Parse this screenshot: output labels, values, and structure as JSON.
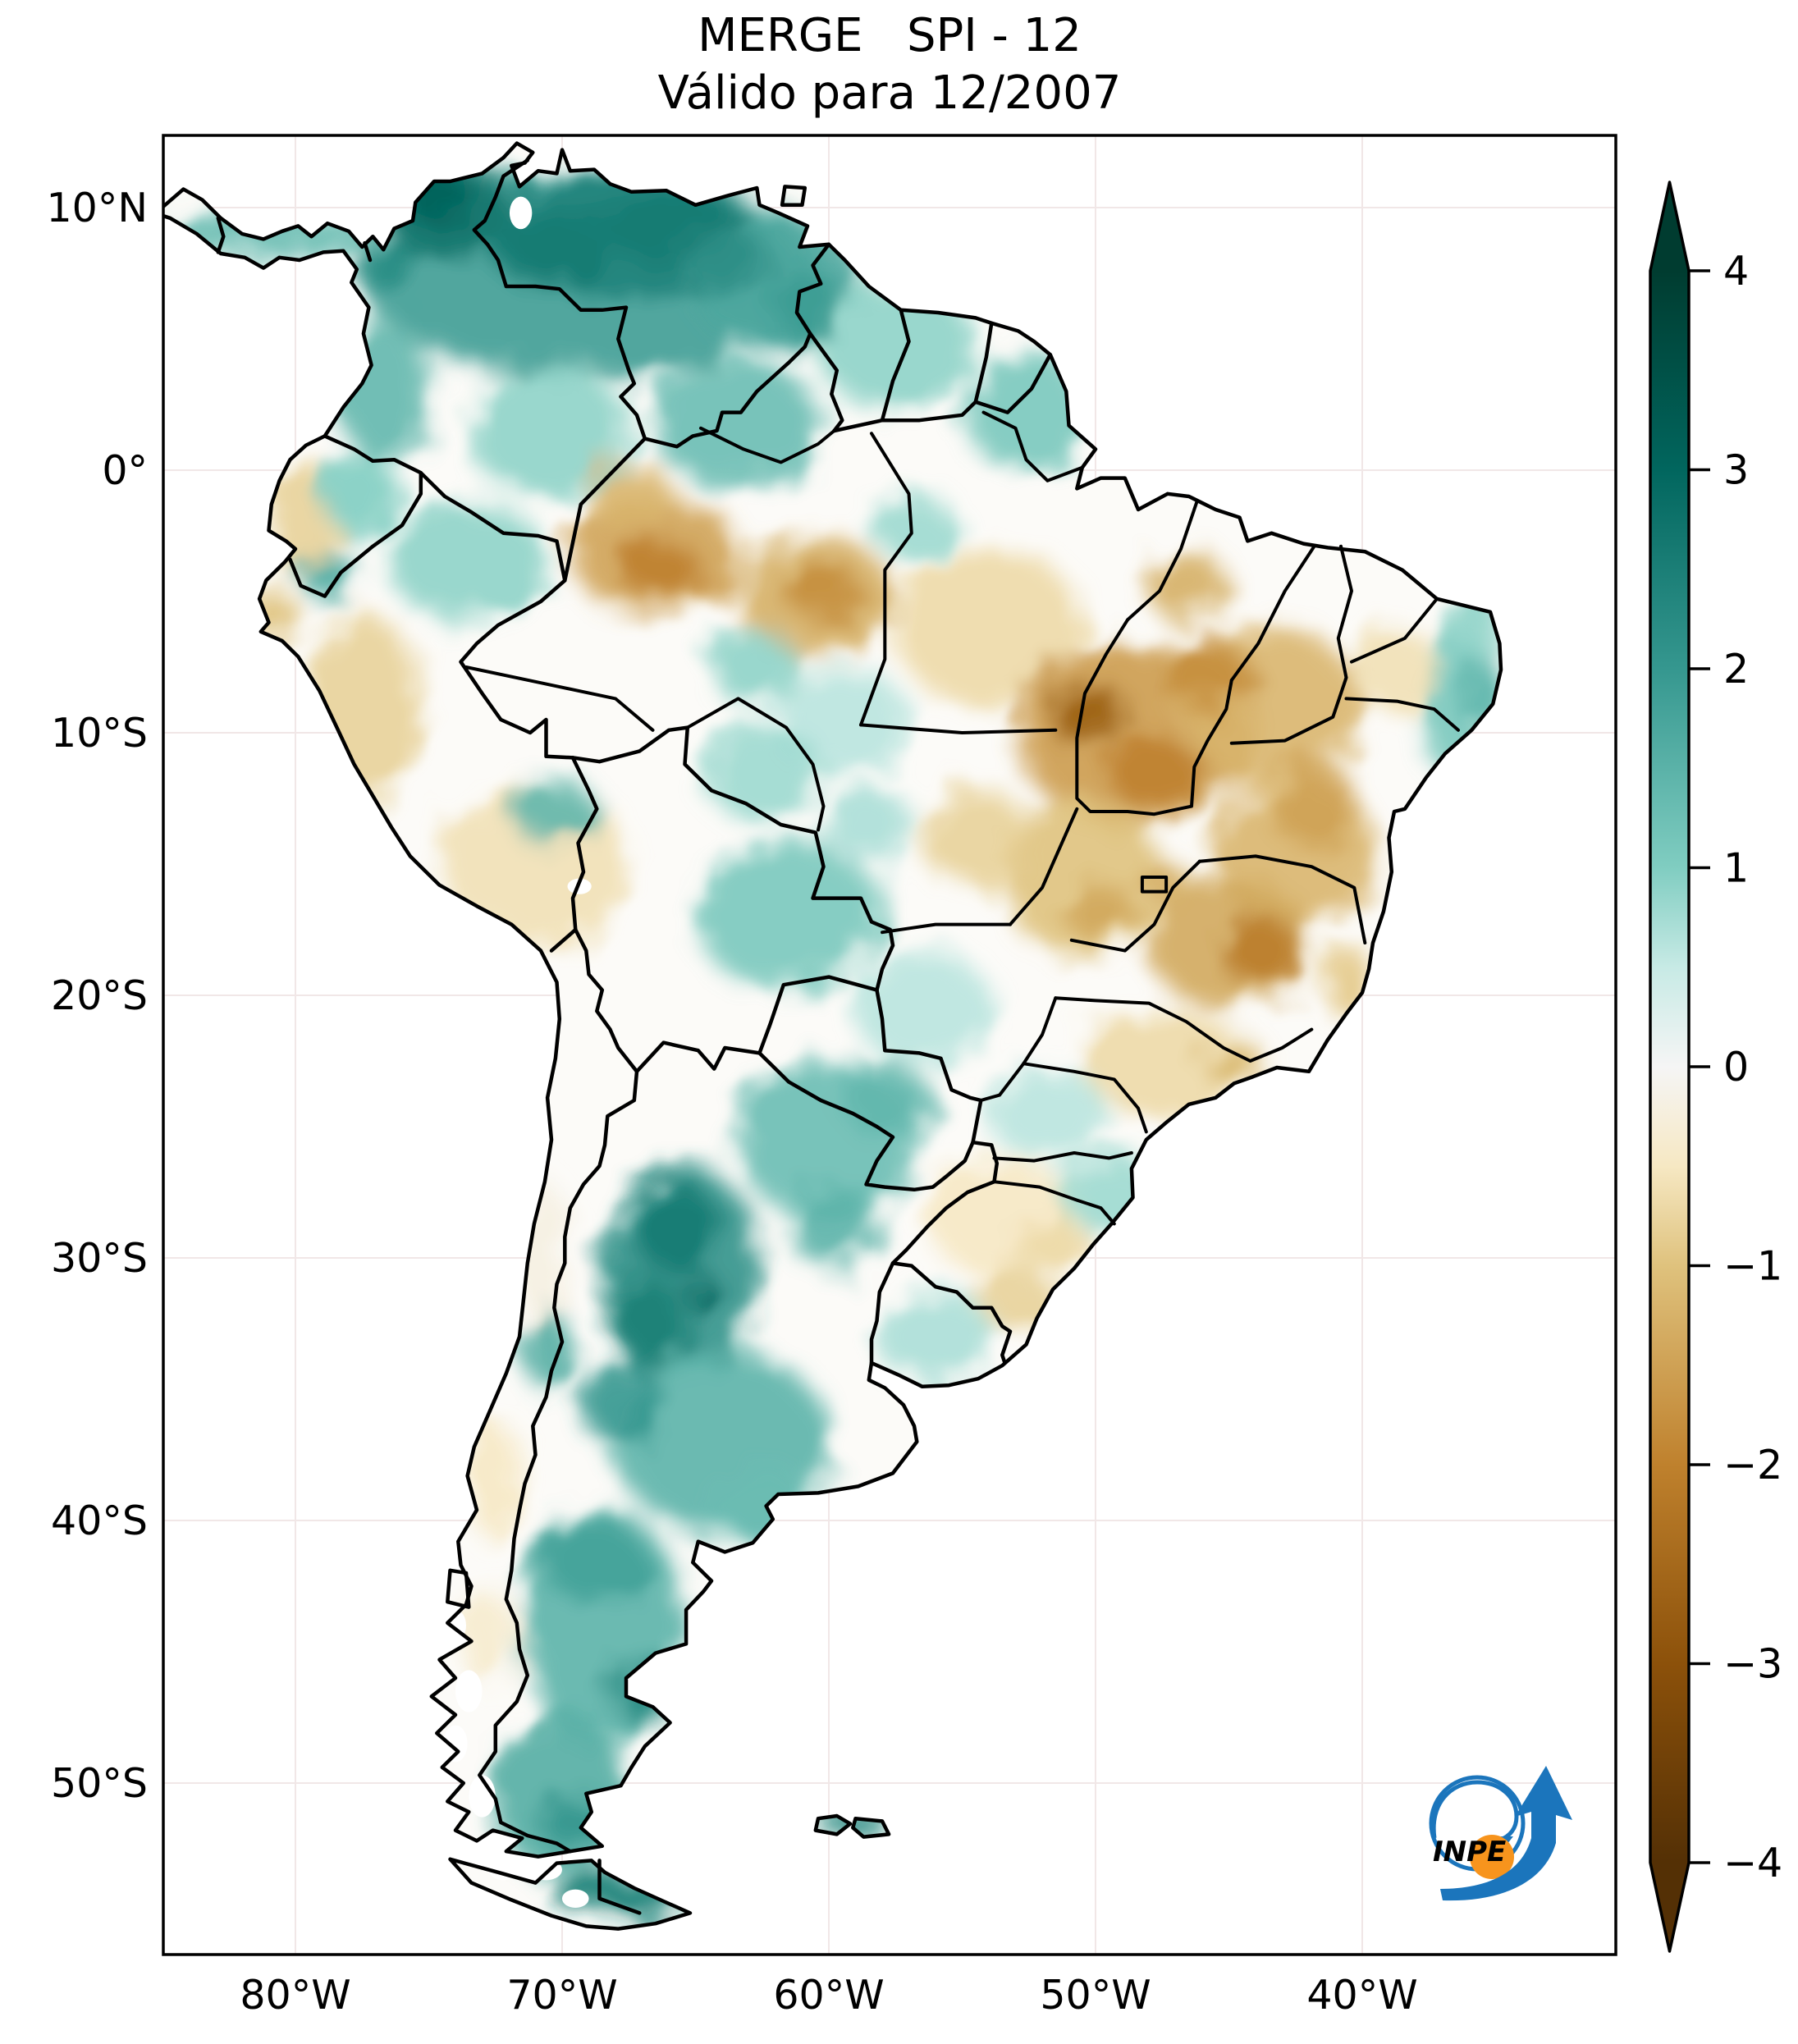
{
  "title": {
    "line1": "MERGE   SPI - 12",
    "line2": "Válido para 12/2007"
  },
  "axes": {
    "lat_ticks": [
      {
        "label": "10°N",
        "lat": 10
      },
      {
        "label": "0°",
        "lat": 0
      },
      {
        "label": "10°S",
        "lat": -10
      },
      {
        "label": "20°S",
        "lat": -20
      },
      {
        "label": "30°S",
        "lat": -30
      },
      {
        "label": "40°S",
        "lat": -40
      },
      {
        "label": "50°S",
        "lat": -50
      }
    ],
    "lon_ticks": [
      {
        "label": "80°W",
        "lon": -80
      },
      {
        "label": "70°W",
        "lon": -70
      },
      {
        "label": "60°W",
        "lon": -60
      },
      {
        "label": "50°W",
        "lon": -50
      },
      {
        "label": "40°W",
        "lon": -40
      }
    ]
  },
  "colorbar": {
    "vmin": -4,
    "vmax": 4,
    "colormap": "BrBG",
    "ticks": [
      {
        "label": "4",
        "value": 4
      },
      {
        "label": "3",
        "value": 3
      },
      {
        "label": "2",
        "value": 2
      },
      {
        "label": "1",
        "value": 1
      },
      {
        "label": "0",
        "value": 0
      },
      {
        "label": "−1",
        "value": -1
      },
      {
        "label": "−2",
        "value": -2
      },
      {
        "label": "−3",
        "value": -3
      },
      {
        "label": "−4",
        "value": -4
      }
    ]
  },
  "logo": {
    "text": "INPE",
    "blue": "#1b75bc",
    "orange": "#f7941d",
    "text_color": "#231f20"
  },
  "colors": {
    "land_base": "#fcfbf8",
    "ocean": "#ffffff",
    "border": "#000000",
    "graticule": "#f1e7e7",
    "frame": "#000000"
  },
  "chart_data": {
    "type": "heatmap",
    "product": "MERGE",
    "variable": "SPI - 12",
    "valid_for": "12/2007",
    "title": "MERGE   SPI - 12",
    "subtitle": "Válido para 12/2007",
    "colormap": "BrBG",
    "vmin": -4,
    "vmax": 4,
    "lon_range": [
      -85,
      -30.5
    ],
    "lat_range": [
      -56.5,
      12.75
    ],
    "colorbar_ticks": [
      4,
      3,
      2,
      1,
      0,
      -1,
      -2,
      -3,
      -4
    ],
    "regions_format": [
      "lon",
      "lat",
      "rx_deg",
      "ry_deg",
      "spi"
    ],
    "regions": [
      [
        -69,
        7.5,
        8.5,
        4,
        1.9
      ],
      [
        -74.5,
        10,
        2.6,
        2,
        2.7
      ],
      [
        -67.5,
        9.2,
        4.5,
        2.6,
        2.4
      ],
      [
        -62,
        7.2,
        3.2,
        2.6,
        1.7
      ],
      [
        -57.5,
        4.8,
        3,
        2.4,
        0.9
      ],
      [
        -52.5,
        2.2,
        2.4,
        2.2,
        1.1
      ],
      [
        -63.5,
        1.8,
        3.2,
        2.4,
        1.3
      ],
      [
        -70.5,
        1.5,
        3,
        2.5,
        0.9
      ],
      [
        -76.8,
        3,
        1.8,
        2.6,
        1.4
      ],
      [
        -66.5,
        -3.2,
        3.2,
        2.2,
        -1.5
      ],
      [
        -60.5,
        -4.8,
        3,
        2.2,
        -1.3
      ],
      [
        -54,
        -6,
        3.5,
        3,
        -0.7
      ],
      [
        -48.5,
        -10,
        4.5,
        3.5,
        -1.6
      ],
      [
        -43.5,
        -9,
        3.5,
        3,
        -1.2
      ],
      [
        -42.5,
        -14.5,
        3,
        2.8,
        -1.2
      ],
      [
        -45,
        -18,
        3,
        2.5,
        -1.4
      ],
      [
        -50.5,
        -15.5,
        3,
        3,
        -1
      ],
      [
        -47.5,
        -22.5,
        3,
        2,
        -0.7
      ],
      [
        -61.5,
        -17,
        3.5,
        2.8,
        1.1
      ],
      [
        -60,
        -25.5,
        3.5,
        3,
        1.3
      ],
      [
        -65.5,
        -30.5,
        3,
        4,
        2.1
      ],
      [
        -64,
        -37,
        4,
        3.5,
        1.5
      ],
      [
        -68.5,
        -44,
        3,
        4.5,
        1.5
      ],
      [
        -70,
        -50.5,
        2.6,
        3,
        1.6
      ],
      [
        -71,
        -15,
        3.5,
        3,
        -0.6
      ],
      [
        -77.5,
        -9,
        2.2,
        3.5,
        -0.8
      ],
      [
        -73.5,
        -3.5,
        3,
        2.2,
        0.9
      ],
      [
        -79.8,
        -1.8,
        1.3,
        2.2,
        -0.8
      ],
      [
        -56.5,
        -20.5,
        2.6,
        2.2,
        0.6
      ],
      [
        -53.5,
        -28.5,
        2.8,
        2.2,
        -0.5
      ],
      [
        -56,
        -33,
        2.2,
        1.8,
        0.7
      ],
      [
        -81,
        8.9,
        4.5,
        0.9,
        1.3
      ],
      [
        -72.5,
        -38.5,
        1,
        2.2,
        -0.5
      ],
      [
        -70.8,
        -30,
        1,
        3,
        -0.2
      ],
      [
        -59.5,
        -9.5,
        2.5,
        2,
        0.6
      ],
      [
        -62.5,
        -11.5,
        2.2,
        1.8,
        0.8
      ],
      [
        -36.5,
        -9,
        1.4,
        2.6,
        1.1
      ],
      [
        -35.8,
        -6,
        1,
        1.6,
        0.9
      ],
      [
        -49.5,
        -27.5,
        1.8,
        1.5,
        0.8
      ],
      [
        -51.8,
        -24.5,
        2.2,
        1.8,
        0.6
      ],
      [
        -77.5,
        -1,
        1.5,
        1.5,
        1
      ],
      [
        -74.8,
        10.5,
        1.4,
        1,
        3.1
      ],
      [
        -70.5,
        8.5,
        2.2,
        1.4,
        2.6
      ],
      [
        -66,
        9.3,
        2.6,
        1.4,
        2.6
      ],
      [
        -63.8,
        8,
        1.6,
        1.2,
        2.2
      ],
      [
        -60.8,
        6.3,
        1.4,
        1.4,
        1.9
      ],
      [
        -50.3,
        -9.3,
        1.5,
        1.1,
        -2.7
      ],
      [
        -47.8,
        -11.5,
        1.8,
        1.4,
        -2
      ],
      [
        -45.8,
        -7.8,
        1.6,
        1.3,
        -1.8
      ],
      [
        -43.8,
        -18.3,
        1.5,
        1.3,
        -2.1
      ],
      [
        -41.8,
        -12.8,
        1.6,
        1.6,
        -1.5
      ],
      [
        -66.3,
        -3.8,
        1.5,
        1.1,
        -2
      ],
      [
        -60.2,
        -4.6,
        1.4,
        1.1,
        -1.8
      ],
      [
        -65.8,
        -28.8,
        1.6,
        1.8,
        2.6
      ],
      [
        -66.8,
        -32.5,
        1.4,
        1.8,
        2.5
      ],
      [
        -64.8,
        -31.3,
        0.7,
        0.6,
        3
      ],
      [
        -67.8,
        -35.5,
        1.5,
        1.6,
        2
      ],
      [
        -66.8,
        -46.5,
        1.4,
        1.2,
        2.2
      ],
      [
        -68.8,
        -41.5,
        2,
        1.6,
        1.8
      ],
      [
        -68,
        -54.2,
        2.4,
        0.9,
        2.5
      ],
      [
        -59,
        -51.6,
        1.3,
        0.6,
        2.2
      ],
      [
        -76.6,
        7.8,
        1,
        1.3,
        2.2
      ],
      [
        -70.3,
        -13,
        1.6,
        1.2,
        1.4
      ],
      [
        -49.9,
        -16.8,
        1.3,
        1.1,
        -1.4
      ],
      [
        -44.8,
        -22.6,
        1.2,
        0.8,
        -1.1
      ],
      [
        -56.8,
        -2.2,
        1.6,
        1.2,
        0.8
      ],
      [
        -67.5,
        -1,
        1.6,
        1.3,
        -1.2
      ],
      [
        -78.8,
        -4,
        1,
        1,
        1.6
      ],
      [
        -80.8,
        -5.5,
        0.9,
        0.9,
        -1
      ],
      [
        -62.8,
        -7.5,
        1.6,
        1.4,
        0.9
      ],
      [
        -57.8,
        -24,
        1.6,
        1.4,
        1.4
      ],
      [
        -59.8,
        -28.8,
        1.6,
        1.6,
        1.5
      ],
      [
        -53,
        -31.5,
        1.4,
        1.2,
        -0.8
      ],
      [
        -46.5,
        -4.5,
        1.5,
        1.3,
        -1.3
      ],
      [
        -38.8,
        -7.5,
        1.6,
        1.6,
        -0.6
      ],
      [
        -35.5,
        -8.5,
        0.8,
        1.4,
        1.4
      ],
      [
        -40.5,
        -19.5,
        1,
        1.3,
        -0.9
      ],
      [
        -54.5,
        -14,
        2,
        1.8,
        -0.8
      ],
      [
        -58.5,
        -13.5,
        1.6,
        1.4,
        0.7
      ],
      [
        -69.5,
        -51.5,
        1.4,
        1,
        2
      ],
      [
        -72.8,
        -44.5,
        1,
        1.8,
        -0.4
      ],
      [
        -51.5,
        -29.5,
        1.3,
        1.1,
        -0.7
      ],
      [
        -62.5,
        -39.5,
        2,
        1.5,
        1.3
      ],
      [
        -70.5,
        -33.5,
        0.9,
        1.5,
        1.6
      ],
      [
        -47.3,
        -15.8,
        0.9,
        0.8,
        -1.3
      ]
    ],
    "white_areas_format": [
      "lon",
      "lat",
      "rx_deg",
      "ry_deg"
    ],
    "white_areas": [
      [
        -71.55,
        9.8,
        0.42,
        0.62
      ],
      [
        -69.35,
        -15.85,
        0.45,
        0.3
      ],
      [
        -73.5,
        -46.5,
        0.5,
        0.8
      ],
      [
        -74,
        -48.5,
        0.45,
        0.7
      ],
      [
        -73,
        -50.5,
        0.5,
        0.8
      ],
      [
        -72.2,
        -53.2,
        0.6,
        0.5
      ],
      [
        -74,
        -44,
        0.4,
        0.6
      ],
      [
        -69.5,
        -54.4,
        0.5,
        0.35
      ],
      [
        -70.6,
        -53.3,
        0.6,
        0.4
      ]
    ]
  }
}
